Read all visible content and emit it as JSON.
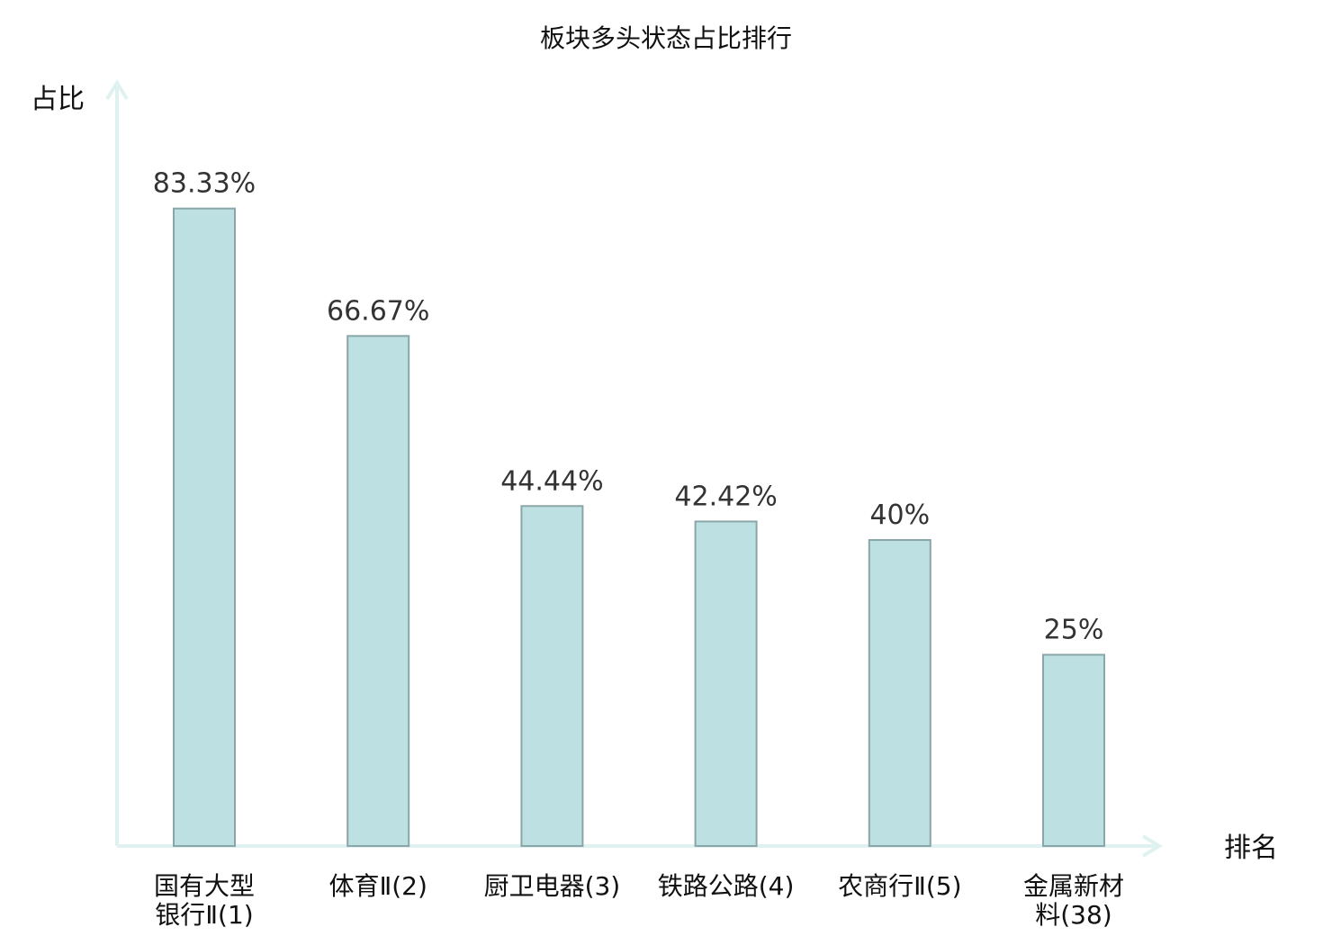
{
  "chart_data": {
    "type": "bar",
    "title": "板块多头状态占比排行",
    "ylabel": "占比",
    "xlabel": "排名",
    "categories": [
      {
        "name": "国有大型银行Ⅱ",
        "rank": "(1)",
        "highlight": false
      },
      {
        "name": "体育Ⅱ",
        "rank": "(2)",
        "highlight": false
      },
      {
        "name": "厨卫电器",
        "rank": "(3)",
        "highlight": false
      },
      {
        "name": "铁路公路",
        "rank": "(4)",
        "highlight": false
      },
      {
        "name": "农商行Ⅱ",
        "rank": "(5)",
        "highlight": false
      },
      {
        "name": "金属新材料",
        "rank": "(38)",
        "highlight": true
      }
    ],
    "values": [
      83.33,
      66.67,
      44.44,
      42.42,
      40,
      25
    ],
    "value_labels": [
      "83.33%",
      "66.67%",
      "44.44%",
      "42.42%",
      "40%",
      "25%"
    ],
    "ylim": [
      0,
      100
    ],
    "grid": false,
    "colors": {
      "bar_fill": "#bde0e3",
      "bar_stroke": "#8aa6a8",
      "axis": "#dff2ef",
      "highlight": "#e02020",
      "text": "#111111",
      "value_text": "#333333"
    }
  }
}
